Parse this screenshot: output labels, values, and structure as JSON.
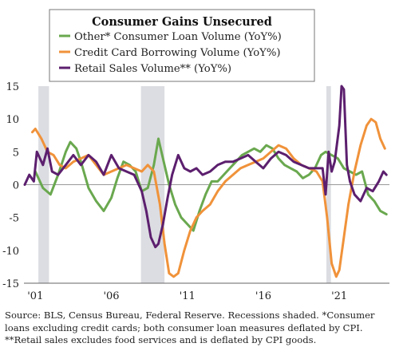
{
  "chart_data": {
    "type": "line",
    "title": "Consumer Gains Unsecured",
    "xlabel": "",
    "ylabel": "",
    "xlim": [
      2000.25,
      2024.3
    ],
    "ylim": [
      -15,
      15
    ],
    "yticks": [
      -15,
      -10,
      -5,
      0,
      5,
      10,
      15
    ],
    "yticklabels": [
      "-15",
      "-10",
      "-5",
      "0",
      "5",
      "10",
      "15"
    ],
    "xticks": [
      2001,
      2006,
      2011,
      2016,
      2021
    ],
    "xticklabels": [
      "'01",
      "'06",
      "'11",
      "'16",
      "'21"
    ],
    "grid": false,
    "zero_line": true,
    "legend_position": "top-center",
    "recessions": [
      [
        2001.2,
        2001.9
      ],
      [
        2007.95,
        2009.5
      ],
      [
        2020.15,
        2020.45
      ]
    ],
    "series": [
      {
        "name": "Other* Consumer Loan Volume (YoY%)",
        "color": "#6aa84f",
        "x": [
          2001.0,
          2001.5,
          2002.0,
          2002.5,
          2003.0,
          2003.3,
          2003.7,
          2004.0,
          2004.5,
          2005.0,
          2005.5,
          2006.0,
          2006.4,
          2006.8,
          2007.2,
          2007.6,
          2008.0,
          2008.4,
          2008.8,
          2009.1,
          2009.4,
          2009.8,
          2010.2,
          2010.6,
          2011.0,
          2011.4,
          2011.8,
          2012.2,
          2012.6,
          2013.0,
          2013.4,
          2013.8,
          2014.2,
          2014.6,
          2015.0,
          2015.4,
          2015.8,
          2016.2,
          2016.6,
          2017.0,
          2017.4,
          2017.8,
          2018.2,
          2018.6,
          2019.0,
          2019.4,
          2019.8,
          2020.1,
          2020.5,
          2020.9,
          2021.3,
          2021.7,
          2022.1,
          2022.5,
          2022.9,
          2023.3,
          2023.7,
          2024.1
        ],
        "values": [
          2.0,
          -0.5,
          -1.5,
          1.5,
          5.0,
          6.5,
          5.5,
          3.5,
          -0.5,
          -2.5,
          -4.0,
          -2.0,
          1.0,
          3.5,
          3.0,
          2.0,
          -1.0,
          -0.5,
          3.0,
          7.0,
          4.0,
          0.0,
          -3.0,
          -5.0,
          -6.0,
          -7.0,
          -4.0,
          -1.5,
          0.5,
          0.5,
          1.5,
          2.5,
          3.5,
          4.5,
          5.0,
          5.5,
          5.0,
          6.0,
          5.5,
          4.0,
          3.0,
          2.5,
          2.0,
          1.0,
          1.5,
          2.5,
          4.5,
          5.0,
          4.5,
          4.0,
          2.5,
          2.0,
          1.5,
          2.0,
          -1.5,
          -2.5,
          -4.0,
          -4.5
        ]
      },
      {
        "name": "Credit Card Borrowing Volume (YoY%)",
        "color": "#f0923a",
        "x": [
          2000.8,
          2001.0,
          2001.4,
          2001.8,
          2002.2,
          2002.6,
          2003.0,
          2003.5,
          2004.0,
          2004.5,
          2005.0,
          2005.5,
          2006.0,
          2006.5,
          2007.0,
          2007.5,
          2008.0,
          2008.4,
          2008.8,
          2009.2,
          2009.5,
          2009.8,
          2010.1,
          2010.4,
          2010.8,
          2011.2,
          2011.6,
          2012.0,
          2012.5,
          2013.0,
          2013.5,
          2014.0,
          2014.5,
          2015.0,
          2015.5,
          2016.0,
          2016.5,
          2017.0,
          2017.5,
          2018.0,
          2018.5,
          2019.0,
          2019.5,
          2019.9,
          2020.2,
          2020.5,
          2020.8,
          2021.0,
          2021.3,
          2021.6,
          2022.0,
          2022.4,
          2022.8,
          2023.1,
          2023.4,
          2023.7,
          2024.0
        ],
        "values": [
          8.0,
          8.5,
          7.0,
          5.0,
          4.5,
          3.0,
          2.5,
          3.5,
          4.0,
          4.5,
          3.0,
          1.5,
          2.0,
          2.5,
          3.0,
          2.5,
          2.0,
          3.0,
          2.0,
          -3.0,
          -9.0,
          -13.5,
          -14.0,
          -13.5,
          -10.0,
          -7.0,
          -5.0,
          -4.0,
          -3.0,
          -1.0,
          0.5,
          1.5,
          2.5,
          3.0,
          3.5,
          4.0,
          5.0,
          6.0,
          5.5,
          4.0,
          3.0,
          2.5,
          2.0,
          0.5,
          -5.0,
          -12.0,
          -14.0,
          -13.0,
          -8.0,
          -3.0,
          2.0,
          6.0,
          9.0,
          10.0,
          9.5,
          7.0,
          5.5
        ]
      },
      {
        "name": "Retail Sales Volume** (YoY%)",
        "color": "#5c1f6e",
        "x": [
          2000.3,
          2000.6,
          2000.9,
          2001.1,
          2001.5,
          2001.8,
          2002.1,
          2002.5,
          2003.0,
          2003.5,
          2004.0,
          2004.5,
          2005.0,
          2005.5,
          2006.0,
          2006.5,
          2007.0,
          2007.5,
          2008.0,
          2008.3,
          2008.6,
          2008.9,
          2009.1,
          2009.4,
          2009.7,
          2010.0,
          2010.4,
          2010.8,
          2011.2,
          2011.6,
          2012.0,
          2012.5,
          2013.0,
          2013.5,
          2014.0,
          2014.5,
          2015.0,
          2015.5,
          2016.0,
          2016.5,
          2017.0,
          2017.5,
          2018.0,
          2018.5,
          2019.0,
          2019.5,
          2019.9,
          2020.1,
          2020.3,
          2020.5,
          2020.7,
          2021.0,
          2021.15,
          2021.3,
          2021.5,
          2021.7,
          2022.0,
          2022.4,
          2022.8,
          2023.2,
          2023.6,
          2023.9,
          2024.1
        ],
        "values": [
          0.0,
          1.5,
          0.5,
          5.0,
          3.0,
          5.5,
          2.0,
          1.5,
          3.0,
          4.5,
          3.0,
          4.5,
          3.5,
          1.5,
          4.5,
          2.5,
          2.0,
          1.5,
          -1.0,
          -4.0,
          -8.0,
          -9.5,
          -9.0,
          -6.0,
          -2.0,
          1.5,
          4.5,
          2.5,
          2.0,
          2.5,
          1.5,
          2.0,
          3.0,
          3.5,
          3.5,
          4.0,
          4.5,
          3.5,
          2.5,
          4.0,
          5.0,
          4.5,
          3.5,
          3.0,
          2.5,
          2.5,
          2.5,
          -1.5,
          5.0,
          2.0,
          3.5,
          9.0,
          15.0,
          14.5,
          3.0,
          0.5,
          -1.5,
          -2.5,
          -0.5,
          -1.0,
          0.5,
          2.0,
          1.5
        ]
      }
    ]
  },
  "footnote": {
    "line1": "Source: BLS, Census Bureau, Federal Reserve. Recessions shaded. *Consumer",
    "line2": "loans excluding credit cards; both consumer loan measures deflated by CPI.",
    "line3": "**Retail sales excludes food services and is deflated by CPI goods."
  }
}
